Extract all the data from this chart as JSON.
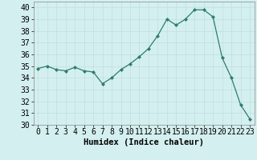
{
  "x": [
    0,
    1,
    2,
    3,
    4,
    5,
    6,
    7,
    8,
    9,
    10,
    11,
    12,
    13,
    14,
    15,
    16,
    17,
    18,
    19,
    20,
    21,
    22,
    23
  ],
  "y": [
    34.8,
    35.0,
    34.7,
    34.6,
    34.9,
    34.6,
    34.5,
    33.5,
    34.0,
    34.7,
    35.2,
    35.8,
    36.5,
    37.6,
    39.0,
    38.5,
    39.0,
    39.8,
    39.8,
    39.2,
    35.7,
    34.0,
    31.7,
    30.5
  ],
  "line_color": "#2e7d6e",
  "marker": "D",
  "marker_size": 2.0,
  "bg_color": "#d4efef",
  "grid_color": "#c0dede",
  "xlabel": "Humidex (Indice chaleur)",
  "xlim": [
    -0.5,
    23.5
  ],
  "ylim": [
    30,
    40.5
  ],
  "yticks": [
    30,
    31,
    32,
    33,
    34,
    35,
    36,
    37,
    38,
    39,
    40
  ],
  "xticks": [
    0,
    1,
    2,
    3,
    4,
    5,
    6,
    7,
    8,
    9,
    10,
    11,
    12,
    13,
    14,
    15,
    16,
    17,
    18,
    19,
    20,
    21,
    22,
    23
  ],
  "xlabel_fontsize": 7.5,
  "tick_fontsize": 7
}
